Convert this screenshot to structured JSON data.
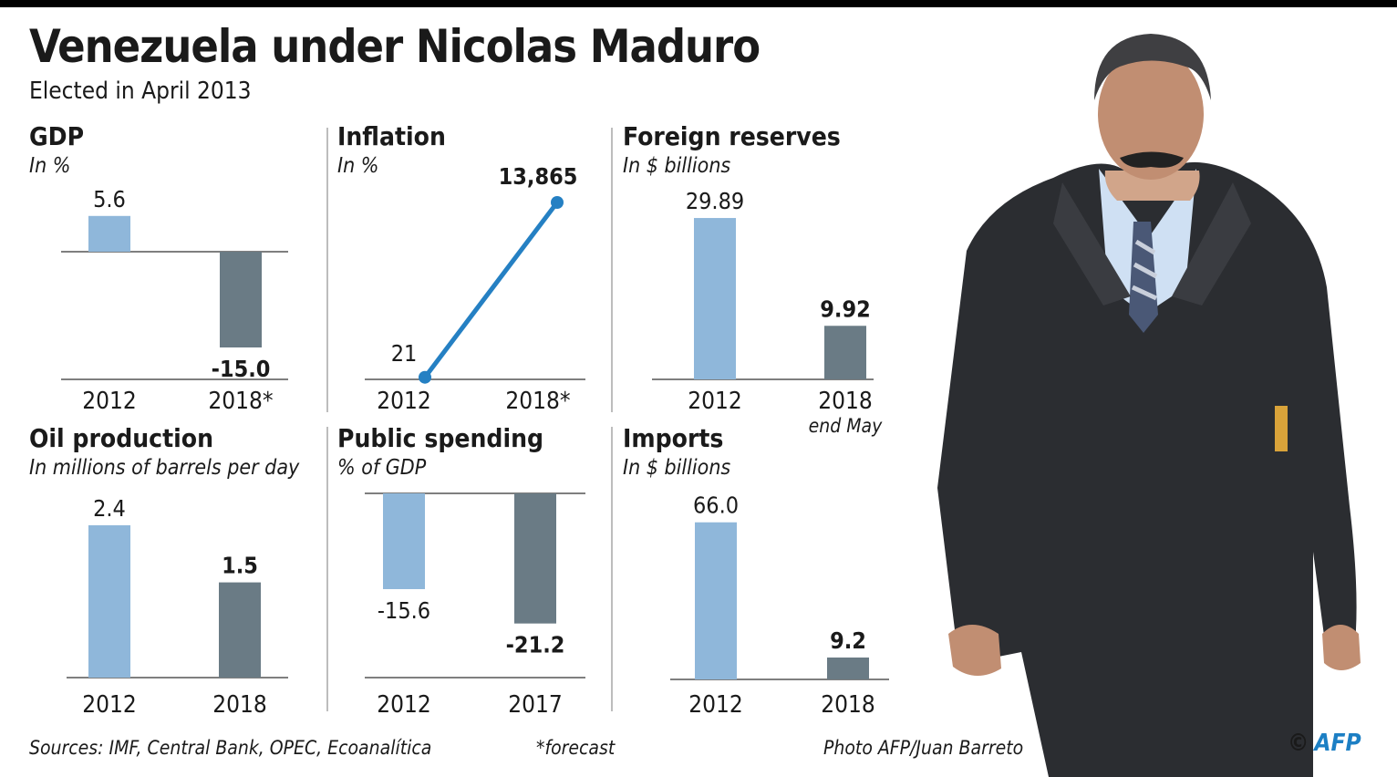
{
  "title": "Venezuela under Nicolas Maduro",
  "subtitle": "Elected in April 2013",
  "colors": {
    "bar2012": "#8fb7da",
    "barLatest": "#6a7b85",
    "line": "#2580c3",
    "axis": "#555555"
  },
  "chart_data": [
    {
      "id": "gdp",
      "type": "bar",
      "title": "GDP",
      "unit": "In %",
      "categories": [
        "2012",
        "2018*"
      ],
      "values": [
        5.6,
        -15.0
      ],
      "labels": [
        "5.6",
        "-15.0"
      ]
    },
    {
      "id": "inflation",
      "type": "line",
      "title": "Inflation",
      "unit": "In %",
      "categories": [
        "2012",
        "2018*"
      ],
      "values": [
        21,
        13865
      ],
      "labels": [
        "21",
        "13,865"
      ]
    },
    {
      "id": "reserves",
      "type": "bar",
      "title": "Foreign reserves",
      "unit": "In $ billions",
      "categories": [
        "2012",
        "2018"
      ],
      "values": [
        29.89,
        9.92
      ],
      "labels": [
        "29.89",
        "9.92"
      ],
      "note": "end May"
    },
    {
      "id": "oil",
      "type": "bar",
      "title": "Oil production",
      "unit": "In millions of barrels per day",
      "categories": [
        "2012",
        "2018"
      ],
      "values": [
        2.4,
        1.5
      ],
      "labels": [
        "2.4",
        "1.5"
      ]
    },
    {
      "id": "spending",
      "type": "bar",
      "title": "Public spending",
      "unit": "% of GDP",
      "categories": [
        "2012",
        "2017"
      ],
      "values": [
        -15.6,
        -21.2
      ],
      "labels": [
        "-15.6",
        "-21.2"
      ]
    },
    {
      "id": "imports",
      "type": "bar",
      "title": "Imports",
      "unit": "In $ billions",
      "categories": [
        "2012",
        "2018"
      ],
      "values": [
        66.0,
        9.2
      ],
      "labels": [
        "66.0",
        "9.2"
      ]
    }
  ],
  "footer": {
    "sources": "Sources: IMF, Central Bank, OPEC, Ecoanalítica",
    "forecast_note": "*forecast",
    "photo_credit": "Photo AFP/Juan Barreto",
    "copyright": "©",
    "logo": "AFP"
  },
  "photo": {
    "subject": "Nicolas Maduro walking in a dark suit"
  }
}
